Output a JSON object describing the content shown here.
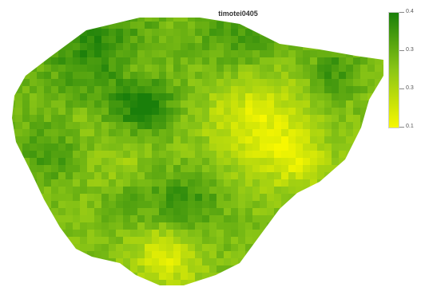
{
  "map": {
    "title": "timotei0405"
  },
  "legend": {
    "labels": [
      "0.4",
      "0.3",
      "0.3",
      "0.1"
    ],
    "color_high": "#1a7f0a",
    "color_mid": "#8cc616",
    "color_low": "#f7f700"
  }
}
